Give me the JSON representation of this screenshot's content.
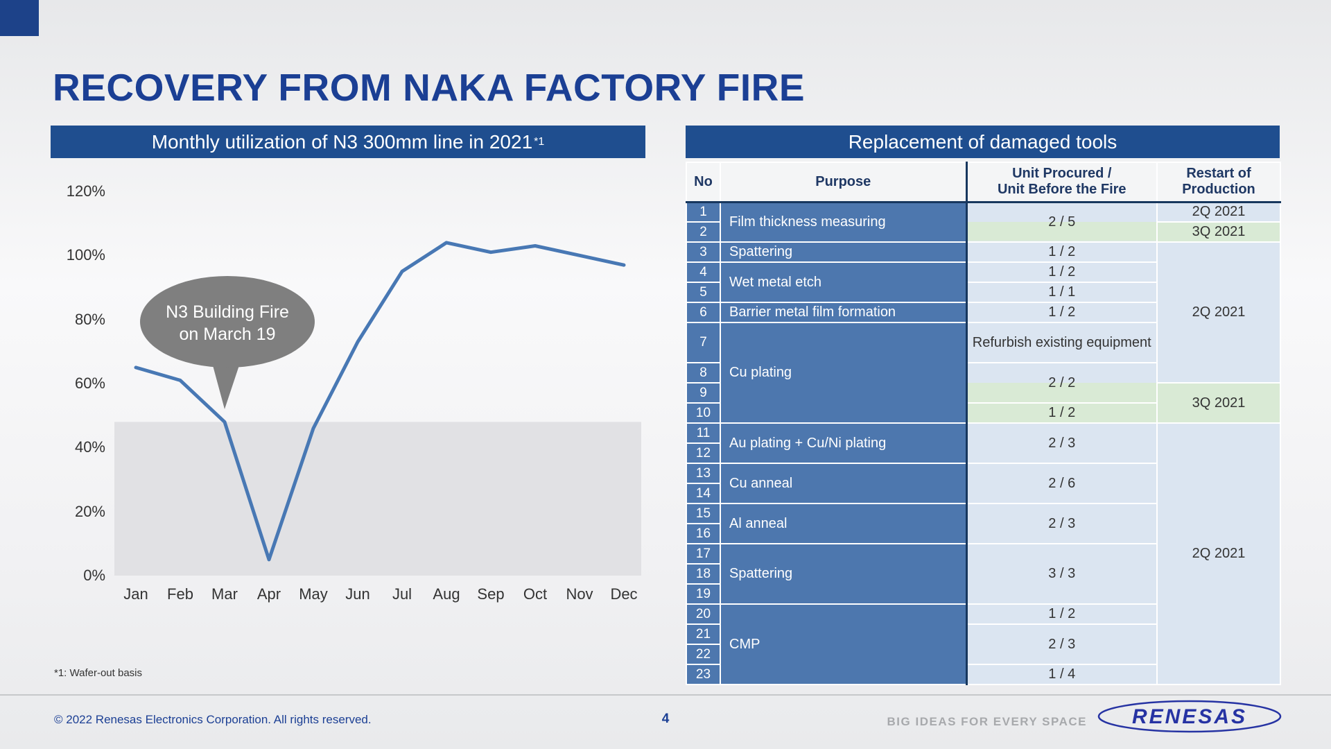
{
  "title": "RECOVERY FROM NAKA FACTORY FIRE",
  "colors": {
    "accent_blue": "#1f4e8f",
    "title_blue": "#1b3f94",
    "cell_blue": "#4d77ae",
    "light_blue": "#dbe5f1",
    "light_green": "#d9ead5",
    "line_blue": "#4878b4",
    "band_gray": "#e1e1e4",
    "callout_gray": "#7f7f7f",
    "logo_blue": "#2633a3"
  },
  "chart": {
    "header": "Monthly utilization of N3 300mm line in 2021",
    "header_sup": "*1",
    "footnote": "*1: Wafer-out basis"
  },
  "chart_data": {
    "type": "line",
    "title": "Monthly utilization of N3 300mm line in 2021 (*1: Wafer-out basis)",
    "x": [
      "Jan",
      "Feb",
      "Mar",
      "Apr",
      "May",
      "Jun",
      "Jul",
      "Aug",
      "Sep",
      "Oct",
      "Nov",
      "Dec"
    ],
    "values": [
      65,
      61,
      48,
      5,
      46,
      73,
      95,
      104,
      101,
      103,
      100,
      97
    ],
    "xlabel": "",
    "ylabel": "",
    "ylim": [
      0,
      120
    ],
    "yticks": [
      0,
      20,
      40,
      60,
      80,
      100,
      120
    ],
    "ytick_suffix": "%",
    "grid": false,
    "legend": "none",
    "shaded_band": {
      "from": 0,
      "to": 48
    },
    "annotation": {
      "text_lines": [
        "N3 Building Fire",
        "on March 19"
      ],
      "anchor_month": "Mar"
    }
  },
  "table": {
    "header": "Replacement of damaged tools",
    "columns": [
      "No",
      "Purpose",
      "Unit Procured /\nUnit Before the Fire",
      "Restart of\nProduction"
    ],
    "rows": [
      {
        "no": "1",
        "cells": [
          {
            "col": "purpose",
            "rowspan": 2,
            "text": "Film thickness measuring"
          },
          {
            "col": "unit",
            "rowspan": 2,
            "bg": "split",
            "text": "2 / 5"
          },
          {
            "col": "restart",
            "bg": "blue",
            "text": "2Q 2021"
          }
        ]
      },
      {
        "no": "2",
        "cells": [
          {
            "col": "restart",
            "bg": "green",
            "text": "3Q 2021"
          }
        ]
      },
      {
        "no": "3",
        "cells": [
          {
            "col": "purpose",
            "text": "Spattering"
          },
          {
            "col": "unit",
            "bg": "blue",
            "text": "1 / 2"
          },
          {
            "col": "restart",
            "rowspan": 6,
            "bg": "blue",
            "text": "2Q 2021"
          }
        ]
      },
      {
        "no": "4",
        "cells": [
          {
            "col": "purpose",
            "rowspan": 2,
            "text": "Wet metal etch"
          },
          {
            "col": "unit",
            "bg": "blue",
            "text": "1 / 2"
          }
        ]
      },
      {
        "no": "5",
        "cells": [
          {
            "col": "unit",
            "bg": "blue",
            "text": "1 / 1"
          }
        ]
      },
      {
        "no": "6",
        "cells": [
          {
            "col": "purpose",
            "text": "Barrier metal film formation"
          },
          {
            "col": "unit",
            "bg": "blue",
            "text": "1 / 2"
          }
        ]
      },
      {
        "no": "7",
        "tall": true,
        "cells": [
          {
            "col": "purpose",
            "rowspan": 4,
            "text": "Cu plating"
          },
          {
            "col": "unit",
            "bg": "blue",
            "text": "Refurbish existing equipment"
          }
        ]
      },
      {
        "no": "8",
        "cells": [
          {
            "col": "unit",
            "rowspan": 2,
            "bg": "split",
            "text": "2 / 2"
          }
        ]
      },
      {
        "no": "9",
        "cells": [
          {
            "col": "restart",
            "rowspan": 2,
            "bg": "green",
            "text": "3Q 2021"
          }
        ]
      },
      {
        "no": "10",
        "cells": [
          {
            "col": "unit",
            "bg": "green",
            "text": "1 / 2"
          }
        ]
      },
      {
        "no": "11",
        "cells": [
          {
            "col": "purpose",
            "rowspan": 2,
            "text": "Au plating + Cu/Ni plating"
          },
          {
            "col": "unit",
            "rowspan": 2,
            "bg": "blue",
            "text": "2 / 3"
          },
          {
            "col": "restart",
            "rowspan": 13,
            "bg": "blue",
            "text": "2Q 2021"
          }
        ]
      },
      {
        "no": "12",
        "cells": []
      },
      {
        "no": "13",
        "cells": [
          {
            "col": "purpose",
            "rowspan": 2,
            "text": "Cu anneal"
          },
          {
            "col": "unit",
            "rowspan": 2,
            "bg": "blue",
            "text": "2 / 6"
          }
        ]
      },
      {
        "no": "14",
        "cells": []
      },
      {
        "no": "15",
        "cells": [
          {
            "col": "purpose",
            "rowspan": 2,
            "text": "Al anneal"
          },
          {
            "col": "unit",
            "rowspan": 2,
            "bg": "blue",
            "text": "2 / 3"
          }
        ]
      },
      {
        "no": "16",
        "cells": []
      },
      {
        "no": "17",
        "cells": [
          {
            "col": "purpose",
            "rowspan": 3,
            "text": "Spattering"
          },
          {
            "col": "unit",
            "rowspan": 3,
            "bg": "blue",
            "text": "3 / 3"
          }
        ]
      },
      {
        "no": "18",
        "cells": []
      },
      {
        "no": "19",
        "cells": []
      },
      {
        "no": "20",
        "cells": [
          {
            "col": "purpose",
            "rowspan": 4,
            "text": "CMP"
          },
          {
            "col": "unit",
            "bg": "blue",
            "text": "1 / 2"
          }
        ]
      },
      {
        "no": "21",
        "cells": [
          {
            "col": "unit",
            "rowspan": 2,
            "bg": "blue",
            "text": "2 / 3"
          }
        ]
      },
      {
        "no": "22",
        "cells": []
      },
      {
        "no": "23",
        "cells": [
          {
            "col": "unit",
            "bg": "blue",
            "text": "1 / 4"
          }
        ]
      }
    ]
  },
  "footer": {
    "copyright": "© 2022 Renesas Electronics Corporation. All rights reserved.",
    "page": "4",
    "tagline": "BIG IDEAS FOR EVERY SPACE",
    "logo": "RENESAS"
  }
}
